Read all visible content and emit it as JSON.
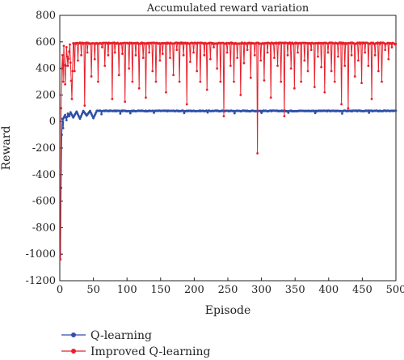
{
  "chart_data": {
    "type": "line",
    "title": "Accumulated reward variation",
    "xlabel": "Episode",
    "ylabel": "Reward",
    "xlim": [
      0,
      500
    ],
    "ylim": [
      -1200,
      800
    ],
    "xticks": [
      0,
      50,
      100,
      150,
      200,
      250,
      300,
      350,
      400,
      450,
      500
    ],
    "yticks": [
      800,
      600,
      400,
      200,
      0,
      -200,
      -400,
      -600,
      -800,
      -1000,
      -1200
    ],
    "grid": false,
    "legend_position": "bottom-left",
    "series": [
      {
        "name": "Q-learning",
        "color": "#2f4fa8",
        "baseline": 80,
        "warmup": [
          [
            1,
            -1000
          ],
          [
            2,
            -500
          ],
          [
            3,
            -100
          ],
          [
            4,
            20
          ],
          [
            5,
            -50
          ],
          [
            6,
            30
          ],
          [
            8,
            50
          ],
          [
            10,
            10
          ],
          [
            12,
            60
          ],
          [
            14,
            40
          ],
          [
            16,
            70
          ],
          [
            20,
            30
          ],
          [
            25,
            75
          ],
          [
            30,
            20
          ],
          [
            35,
            80
          ],
          [
            40,
            45
          ],
          [
            45,
            80
          ],
          [
            50,
            25
          ],
          [
            55,
            80
          ]
        ],
        "dips": [
          [
            62,
            55
          ],
          [
            90,
            60
          ],
          [
            105,
            62
          ],
          [
            140,
            66
          ],
          [
            185,
            64
          ],
          [
            220,
            68
          ],
          [
            260,
            62
          ],
          [
            300,
            65
          ],
          [
            340,
            66
          ],
          [
            380,
            64
          ],
          [
            420,
            60
          ],
          [
            460,
            66
          ]
        ]
      },
      {
        "name": "Improved Q-learning",
        "color": "#e8202a",
        "baseline": 590,
        "warmup": [
          [
            1,
            -1040
          ],
          [
            2,
            100
          ],
          [
            3,
            400
          ],
          [
            4,
            500
          ],
          [
            5,
            300
          ],
          [
            6,
            570
          ],
          [
            8,
            280
          ],
          [
            10,
            560
          ],
          [
            12,
            420
          ],
          [
            15,
            580
          ],
          [
            18,
            170
          ],
          [
            20,
            590
          ]
        ],
        "dips": [
          [
            22,
            380
          ],
          [
            27,
            460
          ],
          [
            32,
            500
          ],
          [
            37,
            120
          ],
          [
            41,
            520
          ],
          [
            47,
            340
          ],
          [
            52,
            470
          ],
          [
            57,
            300
          ],
          [
            63,
            560
          ],
          [
            67,
            420
          ],
          [
            72,
            500
          ],
          [
            78,
            170
          ],
          [
            82,
            520
          ],
          [
            88,
            350
          ],
          [
            93,
            510
          ],
          [
            97,
            150
          ],
          [
            103,
            400
          ],
          [
            108,
            300
          ],
          [
            113,
            500
          ],
          [
            118,
            250
          ],
          [
            124,
            480
          ],
          [
            128,
            180
          ],
          [
            133,
            520
          ],
          [
            138,
            380
          ],
          [
            143,
            300
          ],
          [
            149,
            460
          ],
          [
            153,
            510
          ],
          [
            158,
            220
          ],
          [
            164,
            480
          ],
          [
            169,
            350
          ],
          [
            174,
            540
          ],
          [
            178,
            300
          ],
          [
            184,
            500
          ],
          [
            189,
            130
          ],
          [
            194,
            450
          ],
          [
            199,
            520
          ],
          [
            204,
            380
          ],
          [
            209,
            300
          ],
          [
            215,
            500
          ],
          [
            219,
            240
          ],
          [
            224,
            470
          ],
          [
            229,
            560
          ],
          [
            234,
            400
          ],
          [
            239,
            300
          ],
          [
            244,
            40
          ],
          [
            249,
            520
          ],
          [
            254,
            420
          ],
          [
            259,
            300
          ],
          [
            264,
            480
          ],
          [
            269,
            200
          ],
          [
            274,
            440
          ],
          [
            279,
            540
          ],
          [
            284,
            330
          ],
          [
            290,
            500
          ],
          [
            294,
            -240
          ],
          [
            299,
            460
          ],
          [
            304,
            310
          ],
          [
            309,
            520
          ],
          [
            314,
            180
          ],
          [
            319,
            480
          ],
          [
            324,
            420
          ],
          [
            329,
            300
          ],
          [
            334,
            40
          ],
          [
            339,
            500
          ],
          [
            344,
            400
          ],
          [
            349,
            250
          ],
          [
            354,
            520
          ],
          [
            359,
            300
          ],
          [
            364,
            460
          ],
          [
            369,
            380
          ],
          [
            374,
            540
          ],
          [
            379,
            260
          ],
          [
            384,
            490
          ],
          [
            389,
            410
          ],
          [
            394,
            220
          ],
          [
            399,
            520
          ],
          [
            404,
            380
          ],
          [
            409,
            300
          ],
          [
            414,
            490
          ],
          [
            419,
            130
          ],
          [
            424,
            420
          ],
          [
            429,
            100
          ],
          [
            434,
            500
          ],
          [
            439,
            340
          ],
          [
            444,
            460
          ],
          [
            449,
            290
          ],
          [
            454,
            520
          ],
          [
            459,
            420
          ],
          [
            464,
            170
          ],
          [
            469,
            500
          ],
          [
            474,
            380
          ],
          [
            479,
            300
          ],
          [
            484,
            540
          ],
          [
            489,
            470
          ],
          [
            494,
            560
          ],
          [
            499,
            580
          ]
        ]
      }
    ]
  }
}
